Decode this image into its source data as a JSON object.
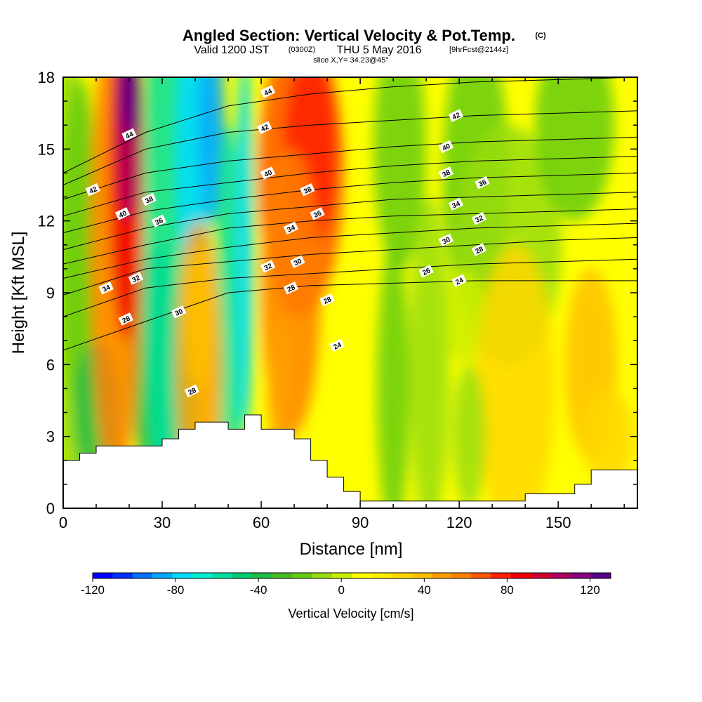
{
  "chart_data": {
    "type": "heatmap",
    "title": "Angled Section: Vertical Velocity & Pot.Temp.",
    "title_mark": "(C)",
    "subtitle_valid": "Valid 1200 JST",
    "subtitle_utc": "(0300Z)",
    "subtitle_date": "THU 5 May 2016",
    "subtitle_fcst": "[9hrFcst@2144z]",
    "slice_label": "slice X,Y= 34.23@45°",
    "xlabel": "Distance [nm]",
    "ylabel": "Height [Kft MSL]",
    "xlim": [
      0,
      174
    ],
    "ylim": [
      0,
      18
    ],
    "xticks": [
      0,
      30,
      60,
      90,
      120,
      150
    ],
    "yticks": [
      0,
      3,
      6,
      9,
      12,
      15,
      18
    ],
    "colorbar": {
      "label": "Vertical Velocity [cm/s]",
      "range": [
        -120,
        130
      ],
      "ticks": [
        -120,
        -80,
        -40,
        0,
        40,
        80,
        120
      ],
      "colors": [
        "#0000ff",
        "#0030ff",
        "#0070ff",
        "#00a8ff",
        "#00ddff",
        "#00f0d0",
        "#00e0a0",
        "#00cc70",
        "#22bb44",
        "#44bb22",
        "#66cc11",
        "#99dd11",
        "#ccee00",
        "#ffff00",
        "#ffee00",
        "#ffd800",
        "#ffc000",
        "#ffa000",
        "#ff8000",
        "#ff5500",
        "#ff2000",
        "#ee0000",
        "#cc0030",
        "#aa0060",
        "#880080",
        "#550088"
      ]
    },
    "terrain_profile": {
      "x": [
        0,
        5,
        5,
        10,
        10,
        30,
        30,
        35,
        35,
        40,
        40,
        50,
        50,
        55,
        55,
        60,
        60,
        70,
        70,
        75,
        75,
        80,
        80,
        85,
        85,
        90,
        90,
        140,
        140,
        155,
        155,
        160,
        160,
        175
      ],
      "height": [
        2,
        2,
        2.3,
        2.3,
        2.6,
        2.6,
        2.9,
        2.9,
        3.3,
        3.3,
        3.6,
        3.6,
        3.3,
        3.3,
        3.9,
        3.9,
        3.3,
        3.3,
        2.9,
        2.9,
        2,
        2,
        1.3,
        1.3,
        0.7,
        0.7,
        0.3,
        0.3,
        0.6,
        0.6,
        1,
        1,
        1.6,
        1.6
      ]
    },
    "series": [
      {
        "name": "24",
        "values": [
          6.6,
          7.8,
          9.0,
          9.3,
          9.4,
          9.5,
          9.5,
          9.5
        ]
      },
      {
        "name": "26",
        "values": [
          8.0,
          9.2,
          9.6,
          9.8,
          10.0,
          10.2,
          10.3,
          10.4
        ]
      },
      {
        "name": "28",
        "values": [
          8.9,
          10.0,
          10.3,
          10.6,
          10.8,
          11.0,
          11.2,
          11.3
        ]
      },
      {
        "name": "30",
        "values": [
          9.6,
          10.4,
          10.9,
          11.3,
          11.5,
          11.7,
          11.8,
          11.9
        ]
      },
      {
        "name": "32",
        "values": [
          10.2,
          11.0,
          11.7,
          12.0,
          12.2,
          12.3,
          12.4,
          12.5
        ]
      },
      {
        "name": "34",
        "values": [
          10.8,
          11.7,
          12.3,
          12.6,
          12.9,
          13.0,
          13.1,
          13.2
        ]
      },
      {
        "name": "36",
        "values": [
          11.5,
          12.4,
          12.9,
          13.3,
          13.6,
          13.8,
          13.9,
          14.0
        ]
      },
      {
        "name": "38",
        "values": [
          12.2,
          13.2,
          13.6,
          14.0,
          14.3,
          14.5,
          14.6,
          14.7
        ]
      },
      {
        "name": "40",
        "values": [
          12.9,
          14.0,
          14.5,
          14.8,
          15.1,
          15.3,
          15.4,
          15.5
        ]
      },
      {
        "name": "42",
        "values": [
          13.5,
          15.0,
          15.7,
          16.0,
          16.2,
          16.4,
          16.5,
          16.6
        ]
      },
      {
        "name": "44",
        "values": [
          14.0,
          15.7,
          16.8,
          17.3,
          17.6,
          17.8,
          17.9,
          18.0
        ]
      }
    ],
    "contour_x": [
      0,
      25,
      50,
      75,
      100,
      125,
      150,
      174
    ],
    "contour_labels": [
      {
        "text": "42",
        "x": 9,
        "y": 13.3
      },
      {
        "text": "44",
        "x": 20,
        "y": 15.6
      },
      {
        "text": "40",
        "x": 18,
        "y": 12.3
      },
      {
        "text": "38",
        "x": 26,
        "y": 12.9
      },
      {
        "text": "36",
        "x": 29,
        "y": 12.0
      },
      {
        "text": "34",
        "x": 13,
        "y": 9.2
      },
      {
        "text": "32",
        "x": 22,
        "y": 9.6
      },
      {
        "text": "28",
        "x": 19,
        "y": 7.9
      },
      {
        "text": "30",
        "x": 35,
        "y": 8.2
      },
      {
        "text": "28",
        "x": 39,
        "y": 4.9
      },
      {
        "text": "44",
        "x": 62,
        "y": 17.4
      },
      {
        "text": "42",
        "x": 61,
        "y": 15.9
      },
      {
        "text": "40",
        "x": 62,
        "y": 14.0
      },
      {
        "text": "38",
        "x": 74,
        "y": 13.3
      },
      {
        "text": "36",
        "x": 77,
        "y": 12.3
      },
      {
        "text": "34",
        "x": 69,
        "y": 11.7
      },
      {
        "text": "32",
        "x": 62,
        "y": 10.1
      },
      {
        "text": "30",
        "x": 71,
        "y": 10.3
      },
      {
        "text": "28",
        "x": 69,
        "y": 9.2
      },
      {
        "text": "28",
        "x": 80,
        "y": 8.7
      },
      {
        "text": "24",
        "x": 83,
        "y": 6.8
      },
      {
        "text": "42",
        "x": 119,
        "y": 16.4
      },
      {
        "text": "40",
        "x": 116,
        "y": 15.1
      },
      {
        "text": "38",
        "x": 116,
        "y": 14.0
      },
      {
        "text": "36",
        "x": 127,
        "y": 13.6
      },
      {
        "text": "34",
        "x": 119,
        "y": 12.7
      },
      {
        "text": "32",
        "x": 126,
        "y": 12.1
      },
      {
        "text": "30",
        "x": 116,
        "y": 11.2
      },
      {
        "text": "28",
        "x": 126,
        "y": 10.8
      },
      {
        "text": "26",
        "x": 110,
        "y": 9.9
      },
      {
        "text": "24",
        "x": 120,
        "y": 9.5
      }
    ]
  }
}
